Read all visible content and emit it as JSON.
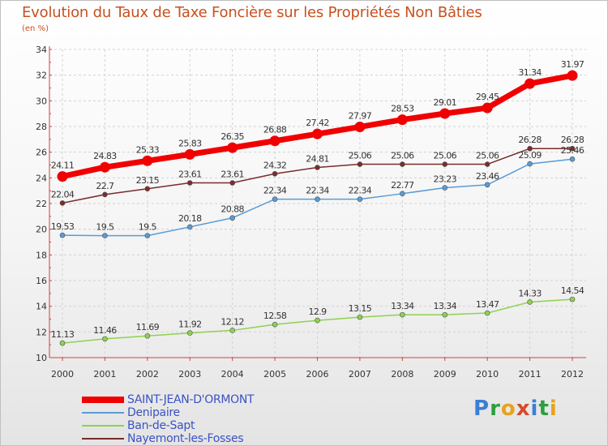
{
  "title": "Evolution du Taux de Taxe Foncière sur les Propriétés Non Bâties",
  "subtitle": "(en %)",
  "brand": {
    "letters": [
      "P",
      "r",
      "o",
      "x",
      "i",
      "t",
      "i"
    ],
    "colors": [
      "#3a7fd6",
      "#2f9e3f",
      "#e8a21a",
      "#d64a2a",
      "#3a7fd6",
      "#2f9e3f",
      "#e8a21a"
    ]
  },
  "chart_data": {
    "type": "line",
    "title": "Evolution du Taux de Taxe Foncière sur les Propriétés Non Bâties",
    "subtitle": "(en %)",
    "x": [
      "2000",
      "2001",
      "2002",
      "2003",
      "2004",
      "2005",
      "2006",
      "2007",
      "2008",
      "2009",
      "2010",
      "2011",
      "2012"
    ],
    "ylim": [
      10,
      34
    ],
    "yticks": [
      "10",
      "12",
      "14",
      "16",
      "18",
      "20",
      "22",
      "24",
      "26",
      "28",
      "30",
      "32",
      "34"
    ],
    "grid": true,
    "legend_position": "bottom-left",
    "series": [
      {
        "name": "SAINT-JEAN-D'ORMONT",
        "color": "#f00000",
        "values": [
          24.11,
          24.83,
          25.33,
          25.83,
          26.35,
          26.88,
          27.42,
          27.97,
          28.53,
          29.01,
          29.45,
          31.34,
          31.97
        ],
        "labels": [
          "24.11",
          "24.83",
          "25.33",
          "25.83",
          "26.35",
          "26.88",
          "27.42",
          "27.97",
          "28.53",
          "29.01",
          "29.45",
          "31.34",
          "31.97"
        ]
      },
      {
        "name": "Denipaire",
        "color": "#5a9bd5",
        "values": [
          19.53,
          19.5,
          19.5,
          20.18,
          20.88,
          22.34,
          22.34,
          22.34,
          22.77,
          23.23,
          23.46,
          25.09,
          25.46
        ],
        "labels": [
          "19.53",
          "19.5",
          "19.5",
          "20.18",
          "20.88",
          "22.34",
          "22.34",
          "22.34",
          "22.77",
          "23.23",
          "23.46",
          "25.09",
          "25.46"
        ]
      },
      {
        "name": "Ban-de-Sapt",
        "color": "#8fd14f",
        "values": [
          11.13,
          11.46,
          11.69,
          11.92,
          12.12,
          12.58,
          12.9,
          13.15,
          13.34,
          13.34,
          13.47,
          14.33,
          14.54
        ],
        "labels": [
          "11.13",
          "11.46",
          "11.69",
          "11.92",
          "12.12",
          "12.58",
          "12.9",
          "13.15",
          "13.34",
          "13.34",
          "13.47",
          "14.33",
          "14.54"
        ]
      },
      {
        "name": "Nayemont-les-Fosses",
        "color": "#7b2c2c",
        "values": [
          22.04,
          22.7,
          23.15,
          23.61,
          23.61,
          24.32,
          24.81,
          25.06,
          25.06,
          25.06,
          25.06,
          26.28,
          26.28
        ],
        "labels": [
          "22.04",
          "22.7",
          "23.15",
          "23.61",
          "23.61",
          "24.32",
          "24.81",
          "25.06",
          "25.06",
          "25.06",
          "25.06",
          "26.28",
          "26.28"
        ]
      }
    ]
  }
}
